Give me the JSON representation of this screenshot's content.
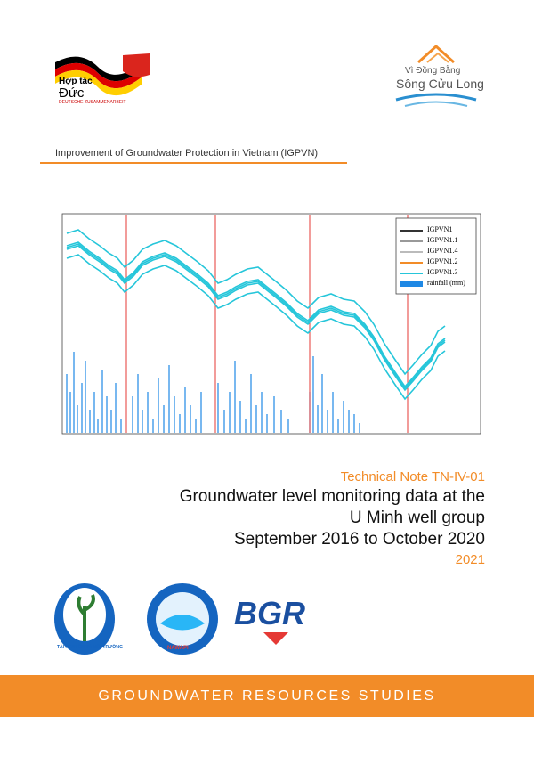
{
  "header": {
    "partner_left": {
      "line1": "Hợp tác",
      "line2": "Đức",
      "line3": "DEUTSCHE ZUSAMMENARBEIT"
    },
    "partner_right": {
      "line1": "Vì Đồng Bằng",
      "line2": "Sông Cửu Long"
    },
    "project": "Improvement of Groundwater Protection in Vietnam (IGPVN)"
  },
  "figure": {
    "legend": [
      "IGPVN1",
      "IGPVN1.1",
      "IGPVN1.4",
      "IGPVN1.2",
      "IGPVN1.3",
      "rainfall (mm)"
    ]
  },
  "report": {
    "series": "Technical Note TN-IV-01",
    "title": [
      "Groundwater level monitoring data at the",
      "U Minh well group",
      "September 2016 to October 2020"
    ],
    "year": "2021"
  },
  "logos": {
    "monre": "TÀI NGUYÊN VÀ MÔI TRƯỜNG",
    "nawapi": "NAWAPI",
    "bgr": "BGR"
  },
  "footer": "GROUNDWATER RESOURCES STUDIES"
}
